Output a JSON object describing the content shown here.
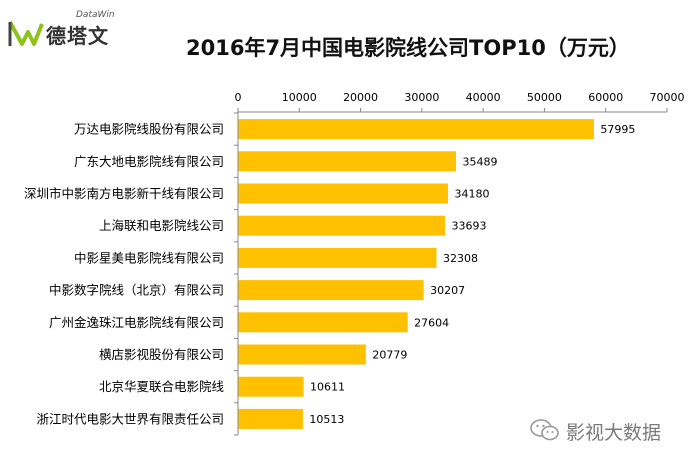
{
  "logo": {
    "brand_cn": "德塔文",
    "brand_en": "DataWin"
  },
  "watermark": {
    "text": "影视大数据"
  },
  "colors": {
    "bar": "#FFC000",
    "axis": "#888888",
    "logo_green": "#8DC21F"
  },
  "chart_data": {
    "type": "bar",
    "orientation": "horizontal",
    "title": "2016年7月中国电影院线公司TOP10（万元）",
    "categories": [
      "万达电影院线股份有限公司",
      "广东大地电影院线有限公司",
      "深圳市中影南方电影新干线有限公司",
      "上海联和电影院线公司",
      "中影星美电影院线有限公司",
      "中影数字院线（北京）有限公司",
      "广州金逸珠江电影院线有限公司",
      "横店影视股份有限公司",
      "北京华夏联合电影院线",
      "浙江时代电影大世界有限责任公司"
    ],
    "values": [
      57995,
      35489,
      34180,
      33693,
      32308,
      30207,
      27604,
      20779,
      10611,
      10513
    ],
    "xlim": [
      0,
      70000
    ],
    "ticks": [
      0,
      10000,
      20000,
      30000,
      40000,
      50000,
      60000,
      70000
    ],
    "tick_labels": [
      "0",
      "10000",
      "20000",
      "30000",
      "40000",
      "50000",
      "60000",
      "70000"
    ],
    "axis_position": "top",
    "grid": false,
    "legend": "none"
  }
}
